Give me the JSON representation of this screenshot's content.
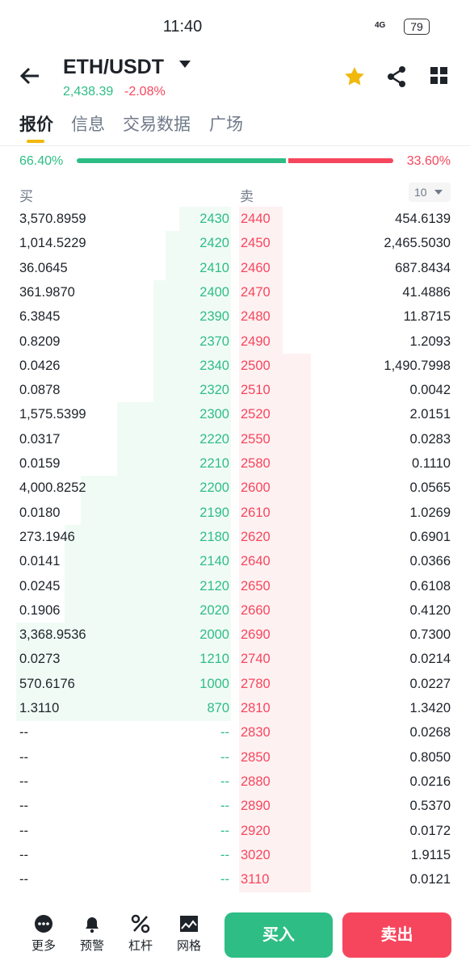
{
  "status_bar": {
    "time": "11:40",
    "network": "4G",
    "battery": "79"
  },
  "header": {
    "pair": "ETH/USDT",
    "price": "2,438.39",
    "change": "-2.08%"
  },
  "tabs": [
    "报价",
    "信息",
    "交易数据",
    "广场"
  ],
  "ratio": {
    "buy": "66.40%",
    "sell": "33.60%"
  },
  "order_book": {
    "buy_label": "买",
    "sell_label": "卖",
    "depth": "10",
    "bids": [
      [
        "3,570.8959",
        "2430"
      ],
      [
        "1,014.5229",
        "2420"
      ],
      [
        "36.0645",
        "2410"
      ],
      [
        "361.9870",
        "2400"
      ],
      [
        "6.3845",
        "2390"
      ],
      [
        "0.8209",
        "2370"
      ],
      [
        "0.0426",
        "2340"
      ],
      [
        "0.0878",
        "2320"
      ],
      [
        "1,575.5399",
        "2300"
      ],
      [
        "0.0317",
        "2220"
      ],
      [
        "0.0159",
        "2210"
      ],
      [
        "4,000.8252",
        "2200"
      ],
      [
        "0.0180",
        "2190"
      ],
      [
        "273.1946",
        "2180"
      ],
      [
        "0.0141",
        "2140"
      ],
      [
        "0.0245",
        "2120"
      ],
      [
        "0.1906",
        "2020"
      ],
      [
        "3,368.9536",
        "2000"
      ],
      [
        "0.0273",
        "1210"
      ],
      [
        "570.6176",
        "1000"
      ],
      [
        "1.3110",
        "870"
      ],
      [
        "--",
        "--"
      ],
      [
        "--",
        "--"
      ],
      [
        "--",
        "--"
      ],
      [
        "--",
        "--"
      ],
      [
        "--",
        "--"
      ],
      [
        "--",
        "--"
      ],
      [
        "--",
        "--"
      ]
    ],
    "asks": [
      [
        "2440",
        "454.6139"
      ],
      [
        "2450",
        "2,465.5030"
      ],
      [
        "2460",
        "687.8434"
      ],
      [
        "2470",
        "41.4886"
      ],
      [
        "2480",
        "11.8715"
      ],
      [
        "2490",
        "1.2093"
      ],
      [
        "2500",
        "1,490.7998"
      ],
      [
        "2510",
        "0.0042"
      ],
      [
        "2520",
        "2.0151"
      ],
      [
        "2550",
        "0.0283"
      ],
      [
        "2580",
        "0.1110"
      ],
      [
        "2600",
        "0.0565"
      ],
      [
        "2610",
        "1.0269"
      ],
      [
        "2620",
        "0.6901"
      ],
      [
        "2640",
        "0.0366"
      ],
      [
        "2650",
        "0.6108"
      ],
      [
        "2660",
        "0.4120"
      ],
      [
        "2690",
        "0.7300"
      ],
      [
        "2740",
        "0.0214"
      ],
      [
        "2780",
        "0.0227"
      ],
      [
        "2810",
        "1.3420"
      ],
      [
        "2830",
        "0.0268"
      ],
      [
        "2850",
        "0.8050"
      ],
      [
        "2880",
        "0.0216"
      ],
      [
        "2890",
        "0.5370"
      ],
      [
        "2920",
        "0.0172"
      ],
      [
        "3020",
        "1.9115"
      ],
      [
        "3110",
        "0.0121"
      ]
    ]
  },
  "bottom_nav": [
    "更多",
    "预警",
    "杠杆",
    "网格"
  ],
  "buttons": {
    "buy": "买入",
    "sell": "卖出"
  }
}
